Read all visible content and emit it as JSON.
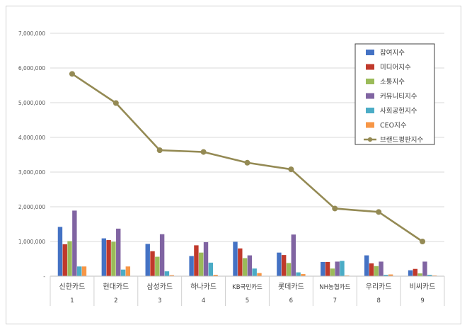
{
  "chart_data": {
    "type": "bar",
    "categories": [
      "신한카드",
      "현대카드",
      "삼성카드",
      "하나카드",
      "KB국민카드",
      "롯데카드",
      "NH농협카드",
      "우리카드",
      "비씨카드"
    ],
    "index_labels": [
      "1",
      "2",
      "3",
      "4",
      "5",
      "6",
      "7",
      "8",
      "9"
    ],
    "y_ticks": [
      "-",
      "1,000,000",
      "2,000,000",
      "3,000,000",
      "4,000,000",
      "5,000,000",
      "6,000,000",
      "7,000,000"
    ],
    "ylim": [
      0,
      7000000
    ],
    "grid": true,
    "legend_position": "top-right",
    "series": [
      {
        "name": "참여지수",
        "type": "bar",
        "color": "#4472C4",
        "values": [
          1420000,
          1090000,
          930000,
          580000,
          990000,
          680000,
          410000,
          600000,
          170000
        ]
      },
      {
        "name": "미디어지수",
        "type": "bar",
        "color": "#C0392B",
        "values": [
          920000,
          1040000,
          720000,
          890000,
          800000,
          610000,
          410000,
          370000,
          210000
        ]
      },
      {
        "name": "소통지수",
        "type": "bar",
        "color": "#9BBB59",
        "values": [
          1010000,
          990000,
          560000,
          680000,
          520000,
          380000,
          220000,
          290000,
          80000
        ]
      },
      {
        "name": "커뮤니티지수",
        "type": "bar",
        "color": "#8064A2",
        "values": [
          1890000,
          1370000,
          1210000,
          980000,
          600000,
          1200000,
          420000,
          420000,
          420000
        ]
      },
      {
        "name": "사회공헌지수",
        "type": "bar",
        "color": "#4BACC6",
        "values": [
          280000,
          190000,
          140000,
          390000,
          220000,
          110000,
          440000,
          40000,
          40000
        ]
      },
      {
        "name": "CEO지수",
        "type": "bar",
        "color": "#F79646",
        "values": [
          280000,
          280000,
          30000,
          40000,
          90000,
          60000,
          20000,
          50000,
          20000
        ]
      },
      {
        "name": "브랜드평판지수",
        "type": "line",
        "color": "#948A54",
        "values": [
          5830000,
          4990000,
          3630000,
          3580000,
          3270000,
          3080000,
          1950000,
          1850000,
          1000000
        ]
      }
    ]
  }
}
